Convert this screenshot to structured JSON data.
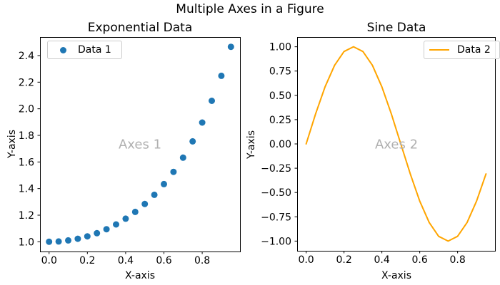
{
  "figure": {
    "suptitle": "Multiple Axes in a Figure",
    "background_color": "#ffffff"
  },
  "chart_data": [
    {
      "type": "scatter",
      "title": "Exponential Data",
      "xlabel": "X-axis",
      "ylabel": "Y-axis",
      "annotation": "Axes 1",
      "annotation_color": "#b0b0b0",
      "legend": {
        "label": "Data 1",
        "position": "upper left"
      },
      "color": "#1f77b4",
      "grid": false,
      "x": [
        0.0,
        0.05,
        0.1,
        0.15,
        0.2,
        0.25,
        0.3,
        0.35,
        0.4,
        0.45,
        0.5,
        0.55,
        0.6,
        0.65,
        0.7,
        0.75,
        0.8,
        0.85,
        0.9,
        0.95
      ],
      "y": [
        1.0,
        1.0025,
        1.01005,
        1.02276,
        1.04081,
        1.06449,
        1.09417,
        1.13032,
        1.17351,
        1.22446,
        1.28403,
        1.35324,
        1.43333,
        1.52578,
        1.63232,
        1.75505,
        1.89648,
        2.05964,
        2.24791,
        2.46599
      ],
      "xlim": [
        -0.0475,
        0.9975
      ],
      "ylim": [
        0.9267,
        2.5393
      ],
      "xticks": {
        "values": [
          0.0,
          0.2,
          0.4,
          0.6,
          0.8
        ],
        "labels": [
          "0.0",
          "0.2",
          "0.4",
          "0.6",
          "0.8"
        ]
      },
      "yticks": {
        "values": [
          1.0,
          1.2,
          1.4,
          1.6,
          1.8,
          2.0,
          2.2,
          2.4
        ],
        "labels": [
          "1.0",
          "1.2",
          "1.4",
          "1.6",
          "1.8",
          "2.0",
          "2.2",
          "2.4"
        ]
      }
    },
    {
      "type": "line",
      "title": "Sine Data",
      "xlabel": "X-axis",
      "ylabel": "Y-axis",
      "annotation": "Axes 2",
      "annotation_color": "#b0b0b0",
      "legend": {
        "label": "Data 2",
        "position": "upper right"
      },
      "color": "#ffa500",
      "grid": false,
      "x": [
        0.0,
        0.05,
        0.1,
        0.15,
        0.2,
        0.25,
        0.3,
        0.35,
        0.4,
        0.45,
        0.5,
        0.55,
        0.6,
        0.65,
        0.7,
        0.75,
        0.8,
        0.85,
        0.9,
        0.95
      ],
      "y": [
        0.0,
        0.30902,
        0.58779,
        0.80902,
        0.95106,
        1.0,
        0.95106,
        0.80902,
        0.58779,
        0.30902,
        0.0,
        -0.30902,
        -0.58779,
        -0.80902,
        -0.95106,
        -1.0,
        -0.95106,
        -0.80902,
        -0.58779,
        -0.30902
      ],
      "xlim": [
        -0.0475,
        0.9975
      ],
      "ylim": [
        -1.1,
        1.1
      ],
      "xticks": {
        "values": [
          0.0,
          0.2,
          0.4,
          0.6,
          0.8
        ],
        "labels": [
          "0.0",
          "0.2",
          "0.4",
          "0.6",
          "0.8"
        ]
      },
      "yticks": {
        "values": [
          1.0,
          0.75,
          0.5,
          0.25,
          0.0,
          -0.25,
          -0.5,
          -0.75,
          -1.0
        ],
        "labels": [
          "1.00",
          "0.75",
          "0.50",
          "0.25",
          "0.00",
          "−0.25",
          "−0.50",
          "−0.75",
          "−1.00"
        ]
      }
    }
  ]
}
